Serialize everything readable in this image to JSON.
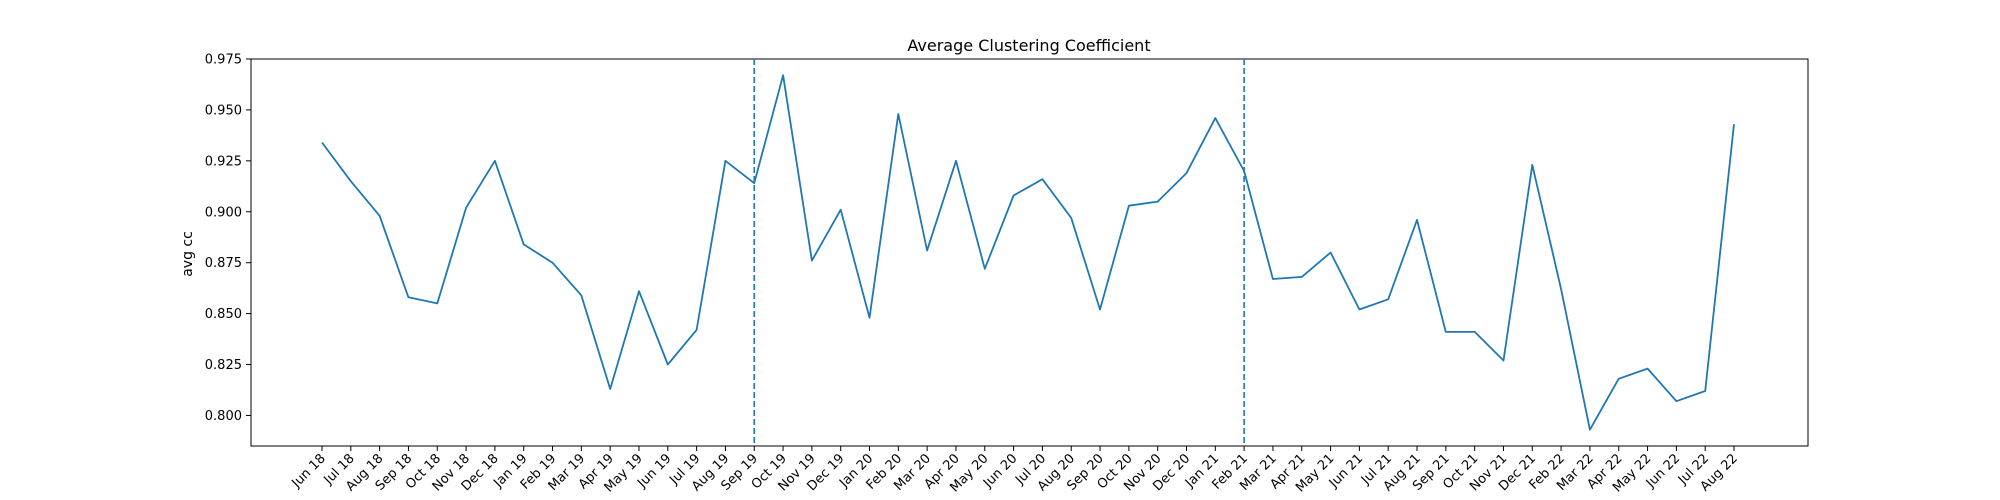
{
  "chart_data": {
    "type": "line",
    "title": "Average Clustering Coefficient",
    "xlabel": "",
    "ylabel": "avg cc",
    "ylim": [
      0.785,
      0.975
    ],
    "yticks": [
      0.8,
      0.825,
      0.85,
      0.875,
      0.9,
      0.925,
      0.95,
      0.975
    ],
    "ytick_labels": [
      "0.800",
      "0.825",
      "0.850",
      "0.875",
      "0.900",
      "0.925",
      "0.950",
      "0.975"
    ],
    "grid": false,
    "categories": [
      "Jun 18",
      "Jul 18",
      "Aug 18",
      "Sep 18",
      "Oct 18",
      "Nov 18",
      "Dec 18",
      "Jan 19",
      "Feb 19",
      "Mar 19",
      "Apr 19",
      "May 19",
      "Jun 19",
      "Jul 19",
      "Aug 19",
      "Sep 19",
      "Oct 19",
      "Nov 19",
      "Dec 19",
      "Jan 20",
      "Feb 20",
      "Mar 20",
      "Apr 20",
      "May 20",
      "Jun 20",
      "Jul 20",
      "Aug 20",
      "Sep 20",
      "Oct 20",
      "Nov 20",
      "Dec 20",
      "Jan 21",
      "Feb 21",
      "Mar 21",
      "Apr 21",
      "May 21",
      "Jun 21",
      "Jul 21",
      "Aug 21",
      "Sep 21",
      "Oct 21",
      "Nov 21",
      "Dec 21",
      "Feb 22",
      "Mar 22",
      "Apr 22",
      "May 22",
      "Jun 22",
      "Jul 22",
      "Aug 22"
    ],
    "series": [
      {
        "color": "#1f77b4",
        "values": [
          0.934,
          0.915,
          0.898,
          0.858,
          0.855,
          0.902,
          0.925,
          0.884,
          0.875,
          0.859,
          0.813,
          0.861,
          0.825,
          0.842,
          0.925,
          0.914,
          0.967,
          0.876,
          0.901,
          0.848,
          0.948,
          0.881,
          0.925,
          0.872,
          0.908,
          0.916,
          0.897,
          0.852,
          0.903,
          0.905,
          0.919,
          0.946,
          0.92,
          0.867,
          0.868,
          0.88,
          0.852,
          0.857,
          0.896,
          0.841,
          0.841,
          0.827,
          0.923,
          0.862,
          0.793,
          0.818,
          0.823,
          0.807,
          0.812,
          0.943
        ]
      }
    ],
    "vlines": [
      {
        "x": "Sep 19",
        "style": "dashed",
        "color": "#1f77b4"
      },
      {
        "x": "Feb 21",
        "style": "dashed",
        "color": "#1f77b4"
      }
    ]
  }
}
